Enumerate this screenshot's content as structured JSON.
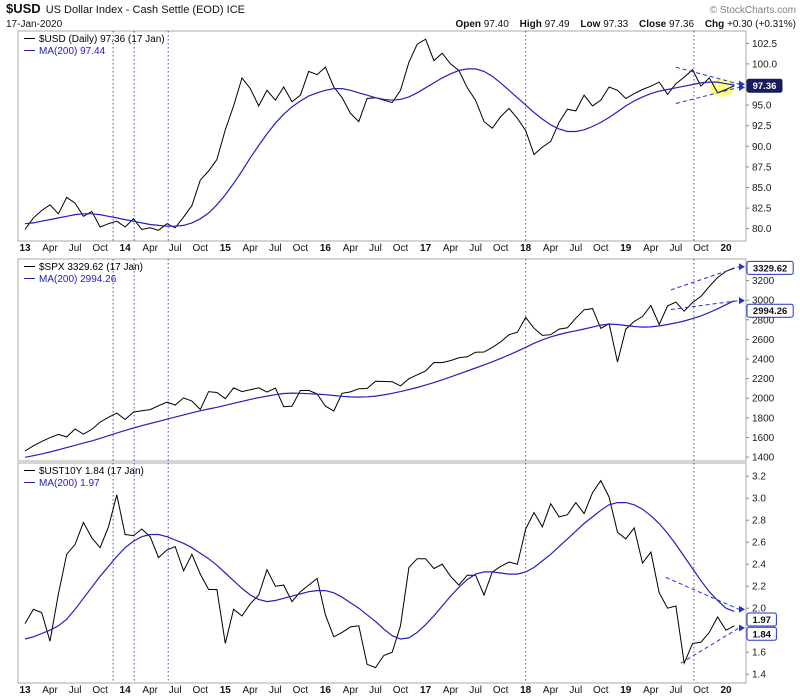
{
  "header": {
    "symbol": "$USD",
    "title": "US Dollar Index - Cash Settle (EOD) ICE",
    "copyright": "© StockCharts.com",
    "date": "17-Jan-2020",
    "quote": {
      "open_label": "Open",
      "open_value": "97.40",
      "high_label": "High",
      "high_value": "97.49",
      "low_label": "Low",
      "low_value": "97.33",
      "close_label": "Close",
      "close_value": "97.36",
      "chg_label": "Chg",
      "chg_value": "+0.30 (+0.31%)"
    }
  },
  "colors": {
    "price": "#000000",
    "ma": "#2222bb",
    "vline": "#4444cc",
    "annotation": "#2233cc",
    "badge_fill": "#1a1a5e",
    "highlight": "#ffff80",
    "axis_text": "#1a1a1a"
  },
  "chart_data": {
    "type": "line",
    "timeframe": "Daily, Jan 2013 - 17 Jan 2020",
    "grid": "off",
    "legend_position": "top-left",
    "x": {
      "start": 2013.0,
      "step": 0.0833333,
      "range": [
        2012.93,
        2020.2
      ],
      "ticks": [
        {
          "t": 2013.0,
          "label": "13",
          "bold": true
        },
        {
          "t": 2013.25,
          "label": "Apr"
        },
        {
          "t": 2013.5,
          "label": "Jul"
        },
        {
          "t": 2013.75,
          "label": "Oct"
        },
        {
          "t": 2014.0,
          "label": "14",
          "bold": true
        },
        {
          "t": 2014.25,
          "label": "Apr"
        },
        {
          "t": 2014.5,
          "label": "Jul"
        },
        {
          "t": 2014.75,
          "label": "Oct"
        },
        {
          "t": 2015.0,
          "label": "15",
          "bold": true
        },
        {
          "t": 2015.25,
          "label": "Apr"
        },
        {
          "t": 2015.5,
          "label": "Jul"
        },
        {
          "t": 2015.75,
          "label": "Oct"
        },
        {
          "t": 2016.0,
          "label": "16",
          "bold": true
        },
        {
          "t": 2016.25,
          "label": "Apr"
        },
        {
          "t": 2016.5,
          "label": "Jul"
        },
        {
          "t": 2016.75,
          "label": "Oct"
        },
        {
          "t": 2017.0,
          "label": "17",
          "bold": true
        },
        {
          "t": 2017.25,
          "label": "Apr"
        },
        {
          "t": 2017.5,
          "label": "Jul"
        },
        {
          "t": 2017.75,
          "label": "Oct"
        },
        {
          "t": 2018.0,
          "label": "18",
          "bold": true
        },
        {
          "t": 2018.25,
          "label": "Apr"
        },
        {
          "t": 2018.5,
          "label": "Jul"
        },
        {
          "t": 2018.75,
          "label": "Oct"
        },
        {
          "t": 2019.0,
          "label": "19",
          "bold": true
        },
        {
          "t": 2019.25,
          "label": "Apr"
        },
        {
          "t": 2019.5,
          "label": "Jul"
        },
        {
          "t": 2019.75,
          "label": "Oct"
        },
        {
          "t": 2020.0,
          "label": "20",
          "bold": true
        }
      ]
    },
    "vlines": [
      2013.88,
      2014.09,
      2014.43,
      2018.0,
      2019.68
    ],
    "panels": [
      {
        "name": "$USD",
        "legend": [
          "$USD (Daily) 97.36 (17 Jan)",
          "MA(200) 97.44"
        ],
        "y_range": [
          78.5,
          104.0
        ],
        "y_ticks": [
          {
            "v": 102.5,
            "label": "102.5"
          },
          {
            "v": 100.0,
            "label": "100.0"
          },
          {
            "v": 95.0,
            "label": "95.0"
          },
          {
            "v": 92.5,
            "label": "92.5"
          },
          {
            "v": 90.0,
            "label": "90.0"
          },
          {
            "v": 87.5,
            "label": "87.5"
          },
          {
            "v": 85.0,
            "label": "85.0"
          },
          {
            "v": 82.5,
            "label": "82.5"
          },
          {
            "v": 80.0,
            "label": "80.0"
          }
        ],
        "badges": [
          {
            "value": 97.36,
            "label": "97.36",
            "filled": true,
            "dy": 0
          }
        ],
        "highlight": [
          2019.96,
          97.1
        ],
        "dashed": [
          {
            "from": [
              2019.5,
              99.6
            ],
            "to": [
              2020.13,
              97.55
            ]
          },
          {
            "from": [
              2019.5,
              95.2
            ],
            "to": [
              2020.13,
              97.15
            ]
          }
        ],
        "series": [
          {
            "name": "$USD close",
            "color_key": "price",
            "values": [
              79.9,
              81.3,
              82.2,
              82.9,
              81.8,
              83.8,
              83.1,
              81.5,
              82.1,
              80.2,
              80.6,
              80.9,
              80.2,
              81.2,
              79.9,
              80.1,
              79.8,
              80.6,
              80.1,
              81.4,
              82.8,
              85.9,
              87.0,
              88.4,
              92.0,
              94.9,
              98.3,
              97.0,
              94.9,
              96.8,
              95.6,
              97.2,
              95.4,
              96.2,
              99.1,
              98.7,
              99.6,
              97.2,
              95.9,
              94.0,
              93.0,
              95.8,
              95.9,
              95.6,
              95.3,
              96.8,
              100.2,
              102.4,
              103.0,
              100.4,
              101.3,
              100.0,
              99.2,
              97.1,
              95.6,
              93.0,
              92.2,
              93.6,
              94.6,
              93.4,
              91.9,
              89.0,
              89.9,
              90.6,
              92.9,
              94.5,
              94.3,
              96.2,
              94.9,
              95.6,
              97.2,
              96.8,
              95.8,
              96.4,
              96.9,
              97.3,
              97.8,
              96.3,
              97.6,
              98.4,
              99.3,
              97.3,
              98.3,
              96.5,
              96.9,
              97.36
            ]
          },
          {
            "name": "MA(200)",
            "color_key": "ma",
            "values": [
              80.6,
              80.7,
              80.9,
              81.1,
              81.3,
              81.5,
              81.7,
              81.8,
              81.8,
              81.7,
              81.5,
              81.3,
              81.1,
              80.9,
              80.7,
              80.5,
              80.4,
              80.3,
              80.3,
              80.4,
              80.7,
              81.2,
              81.9,
              82.9,
              84.1,
              85.5,
              87.0,
              88.6,
              90.1,
              91.5,
              92.8,
              93.9,
              94.8,
              95.5,
              96.1,
              96.5,
              96.8,
              97.0,
              97.0,
              96.8,
              96.5,
              96.2,
              95.9,
              95.7,
              95.6,
              95.7,
              96.0,
              96.5,
              97.1,
              97.7,
              98.3,
              98.8,
              99.2,
              99.4,
              99.4,
              99.1,
              98.5,
              97.7,
              96.8,
              95.9,
              95.0,
              94.1,
              93.3,
              92.6,
              92.1,
              91.8,
              91.8,
              92.0,
              92.4,
              92.9,
              93.5,
              94.2,
              94.9,
              95.5,
              96.0,
              96.4,
              96.7,
              96.9,
              97.1,
              97.3,
              97.5,
              97.7,
              97.8,
              97.8,
              97.6,
              97.44
            ]
          }
        ]
      },
      {
        "name": "$SPX",
        "legend": [
          "$SPX 3329.62 (17 Jan)",
          "MA(200) 2994.26"
        ],
        "y_range": [
          1360,
          3420
        ],
        "y_ticks": [
          {
            "v": 3200,
            "label": "3200"
          },
          {
            "v": 3000,
            "label": "3000"
          },
          {
            "v": 2800,
            "label": "2800"
          },
          {
            "v": 2600,
            "label": "2600"
          },
          {
            "v": 2400,
            "label": "2400"
          },
          {
            "v": 2200,
            "label": "2200"
          },
          {
            "v": 2000,
            "label": "2000"
          },
          {
            "v": 1800,
            "label": "1800"
          },
          {
            "v": 1600,
            "label": "1600"
          },
          {
            "v": 1400,
            "label": "1400"
          }
        ],
        "badges": [
          {
            "value": 3329.62,
            "label": "3329.62",
            "filled": false,
            "dy": 0
          },
          {
            "value": 2994.26,
            "label": "2994.26",
            "filled": false,
            "dy": 10
          }
        ],
        "dashed": [
          {
            "from": [
              2019.45,
              3105
            ],
            "to": [
              2020.13,
              3340
            ]
          },
          {
            "from": [
              2019.45,
              2905
            ],
            "to": [
              2020.13,
              2996
            ]
          }
        ],
        "series": [
          {
            "name": "$SPX close",
            "color_key": "price",
            "values": [
              1462,
              1515,
              1560,
              1598,
              1631,
              1606,
              1686,
              1633,
              1682,
              1757,
              1806,
              1848,
              1783,
              1859,
              1872,
              1884,
              1924,
              1960,
              1931,
              2003,
              1972,
              1885,
              2068,
              2059,
              1995,
              2105,
              2068,
              2086,
              2107,
              2063,
              2104,
              1914,
              1920,
              2079,
              2080,
              2044,
              1920,
              1870,
              2050,
              2065,
              2097,
              2099,
              2174,
              2171,
              2168,
              2126,
              2199,
              2239,
              2279,
              2364,
              2363,
              2384,
              2412,
              2423,
              2470,
              2472,
              2519,
              2575,
              2648,
              2674,
              2824,
              2714,
              2641,
              2648,
              2705,
              2718,
              2816,
              2902,
              2914,
              2712,
              2760,
              2370,
              2704,
              2784,
              2834,
              2946,
              2752,
              2942,
              2980,
              2888,
              2977,
              3038,
              3141,
              3231,
              3295,
              3329.62
            ]
          },
          {
            "name": "MA(200)",
            "color_key": "ma",
            "values": [
              1398,
              1414,
              1432,
              1452,
              1474,
              1497,
              1520,
              1543,
              1565,
              1590,
              1618,
              1645,
              1672,
              1697,
              1720,
              1742,
              1764,
              1786,
              1808,
              1830,
              1852,
              1872,
              1890,
              1908,
              1928,
              1948,
              1968,
              1988,
              2006,
              2022,
              2036,
              2048,
              2052,
              2050,
              2046,
              2042,
              2036,
              2028,
              2020,
              2014,
              2012,
              2015,
              2022,
              2034,
              2050,
              2068,
              2088,
              2110,
              2134,
              2160,
              2188,
              2218,
              2248,
              2278,
              2308,
              2340,
              2372,
              2406,
              2442,
              2480,
              2520,
              2560,
              2596,
              2626,
              2650,
              2670,
              2688,
              2706,
              2726,
              2746,
              2756,
              2752,
              2742,
              2732,
              2726,
              2728,
              2738,
              2752,
              2768,
              2788,
              2812,
              2840,
              2874,
              2912,
              2954,
              2994.26
            ]
          }
        ]
      },
      {
        "name": "$UST10Y",
        "legend": [
          "$UST10Y 1.84 (17 Jan)",
          "MA(200) 1.97"
        ],
        "y_range": [
          1.32,
          3.32
        ],
        "y_ticks": [
          {
            "v": 3.2,
            "label": "3.2"
          },
          {
            "v": 3.0,
            "label": "3.0"
          },
          {
            "v": 2.8,
            "label": "2.8"
          },
          {
            "v": 2.6,
            "label": "2.6"
          },
          {
            "v": 2.4,
            "label": "2.4"
          },
          {
            "v": 2.2,
            "label": "2.2"
          },
          {
            "v": 2.0,
            "label": "2.0"
          },
          {
            "v": 1.6,
            "label": "1.6"
          },
          {
            "v": 1.4,
            "label": "1.4"
          }
        ],
        "badges": [
          {
            "value": 1.97,
            "label": "1.97",
            "filled": false,
            "dy": 8
          },
          {
            "value": 1.84,
            "label": "1.84",
            "filled": false,
            "dy": 8
          }
        ],
        "dashed": [
          {
            "from": [
              2019.55,
              1.5
            ],
            "to": [
              2020.13,
              1.82
            ]
          },
          {
            "from": [
              2019.4,
              2.28
            ],
            "to": [
              2020.13,
              1.99
            ]
          }
        ],
        "series": [
          {
            "name": "$UST10Y close",
            "color_key": "price",
            "values": [
              1.86,
              1.99,
              1.96,
              1.7,
              2.13,
              2.49,
              2.58,
              2.78,
              2.64,
              2.55,
              2.74,
              3.03,
              2.67,
              2.66,
              2.72,
              2.65,
              2.46,
              2.53,
              2.56,
              2.34,
              2.49,
              2.31,
              2.17,
              2.17,
              1.68,
              1.99,
              1.93,
              2.04,
              2.12,
              2.35,
              2.2,
              2.21,
              2.06,
              2.15,
              2.21,
              2.27,
              1.94,
              1.74,
              1.78,
              1.83,
              1.84,
              1.49,
              1.46,
              1.57,
              1.6,
              1.84,
              2.37,
              2.45,
              2.45,
              2.36,
              2.4,
              2.29,
              2.21,
              2.3,
              2.3,
              2.12,
              2.33,
              2.38,
              2.42,
              2.4,
              2.72,
              2.87,
              2.74,
              2.95,
              2.83,
              2.85,
              2.96,
              2.86,
              3.05,
              3.16,
              3.01,
              2.69,
              2.63,
              2.73,
              2.41,
              2.51,
              2.14,
              2.0,
              2.02,
              1.5,
              1.68,
              1.69,
              1.78,
              1.92,
              1.8,
              1.84
            ]
          },
          {
            "name": "MA(200)",
            "color_key": "ma",
            "values": [
              1.72,
              1.74,
              1.77,
              1.8,
              1.84,
              1.9,
              1.99,
              2.09,
              2.19,
              2.29,
              2.38,
              2.47,
              2.55,
              2.61,
              2.65,
              2.67,
              2.67,
              2.65,
              2.62,
              2.59,
              2.55,
              2.5,
              2.45,
              2.39,
              2.32,
              2.25,
              2.18,
              2.12,
              2.08,
              2.06,
              2.07,
              2.09,
              2.11,
              2.13,
              2.15,
              2.16,
              2.16,
              2.14,
              2.1,
              2.05,
              2.0,
              1.94,
              1.88,
              1.81,
              1.75,
              1.72,
              1.73,
              1.78,
              1.85,
              1.93,
              2.02,
              2.11,
              2.19,
              2.26,
              2.31,
              2.33,
              2.33,
              2.32,
              2.31,
              2.31,
              2.33,
              2.37,
              2.43,
              2.49,
              2.56,
              2.63,
              2.7,
              2.77,
              2.83,
              2.89,
              2.94,
              2.96,
              2.96,
              2.94,
              2.9,
              2.84,
              2.77,
              2.68,
              2.58,
              2.47,
              2.36,
              2.25,
              2.15,
              2.07,
              2.0,
              1.97
            ]
          }
        ]
      }
    ]
  }
}
